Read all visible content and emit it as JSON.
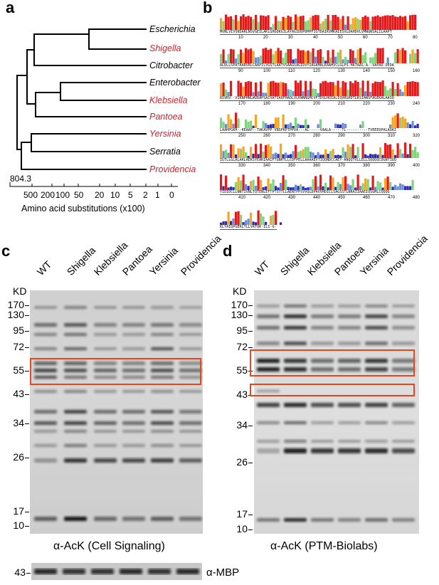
{
  "panels": {
    "a": "a",
    "b": "b",
    "c": "c",
    "d": "d"
  },
  "tree": {
    "taxa": [
      {
        "name": "Escherichia",
        "color": "#000000"
      },
      {
        "name": "Shigella",
        "color": "#d0202a"
      },
      {
        "name": "Citrobacter",
        "color": "#000000"
      },
      {
        "name": "Enterobacter",
        "color": "#000000"
      },
      {
        "name": "Klebsiella",
        "color": "#d0202a"
      },
      {
        "name": "Pantoea",
        "color": "#d0202a"
      },
      {
        "name": "Yersinia",
        "color": "#d0202a"
      },
      {
        "name": "Serratia",
        "color": "#000000"
      },
      {
        "name": "Providencia",
        "color": "#d0202a"
      }
    ],
    "root_value": "804.3",
    "axis_ticks": [
      "500",
      "200",
      "100",
      "50",
      "20",
      "10",
      "5",
      "2",
      "1",
      "0"
    ],
    "axis_title": "Amino acid substitutions (x100)"
  },
  "alignment": {
    "rows": [
      {
        "ticks": [
          "10",
          "20",
          "30",
          "40",
          "50",
          "60",
          "70",
          "80"
        ],
        "seq": "MVNLVIVSNSARLNSVGEILAKLGHGDKGILAYAGIDDPDMPFIGTDAIKVMKAIESVLDAHDVLVMNQNSALILAAPT"
      },
      {
        "ticks": [
          "90",
          "100",
          "110",
          "120",
          "130",
          "140",
          "150",
          "160"
        ],
        "seq": "ALDLLSPATAARVRLCAAPILVGSTLAATVSAAGSAGIDVYIAGAMALKAAHVCLGLPS-HATAAS-A--VAPAD-DEDA"
      },
      {
        "ticks": [
          "170",
          "180",
          "190",
          "200",
          "210",
          "220",
          "230",
          "240"
        ],
        "seq": "RSVRV--VIRNPHNLWVRAPSAIVATIAQFHADLVLKWNNGMCVFTDSLHQIALIQVRGHDTLKSIANSFAGEKALAASQ"
      },
      {
        "ticks": [
          "250",
          "260",
          "270",
          "280",
          "290",
          "300",
          "310",
          "320"
        ],
        "seq": "LAAHPGKH--KEAAP--TAKAVPP-VNSPKPTPPVA---AL-----VAALA-----TL----------TVEEEQPALAQAI"
      },
      {
        "ticks": [
          "330",
          "340",
          "350",
          "360",
          "370",
          "380",
          "390",
          "400"
        ],
        "seq": "IGTLLGLALAKLAEKSYEARIAAIFTGNHTLLCDFPELLAAAAEVTIQQNDCCAEY-ANQQTVLLELLSQQQQCDGNTIQQ"
      },
      {
        "ticks": [
          "410",
          "420",
          "430",
          "440",
          "450",
          "460",
          "470",
          "480"
        ],
        "seq": "YIDIDCLLNNTIVNLTQTENLEFTPTSTTLLAENTPPSVVQLDPAVVHDICLSAGSSTLNRAIIAAEIQSGMLCQQQG"
      },
      {
        "ticks": [],
        "seq": "KLYAIQPGERLTLLVATQR-ILI-G-"
      }
    ]
  },
  "blot_c": {
    "lanes": [
      "WT",
      "Shigella",
      "Klebsiella",
      "Pantoea",
      "Yersinia",
      "Providencia"
    ],
    "kd_label": "KD",
    "markers": [
      "170",
      "130",
      "95",
      "72",
      "55",
      "43",
      "34",
      "26",
      "17",
      "10"
    ],
    "caption": "α-AcK (Cell Signaling)",
    "loading_marker": "43",
    "loading_label": "α-MBP"
  },
  "blot_d": {
    "lanes": [
      "WT",
      "Shigella",
      "Klebsiella",
      "Pantoea",
      "Yersinia",
      "Providencia"
    ],
    "kd_label": "KD",
    "markers": [
      "170",
      "130",
      "95",
      "72",
      "55",
      "43",
      "34",
      "26",
      "17",
      "10"
    ],
    "caption": "α-AcK (PTM-Biolabs)"
  },
  "colors": {
    "highlight_box": "#e8461e",
    "red_taxon": "#d0202a",
    "bar_red": "#e31a1c",
    "bar_orange": "#f5a623",
    "bar_green": "#7ed67a",
    "bar_blue": "#6a8fd8",
    "bar_navy": "#2b2bb0"
  }
}
